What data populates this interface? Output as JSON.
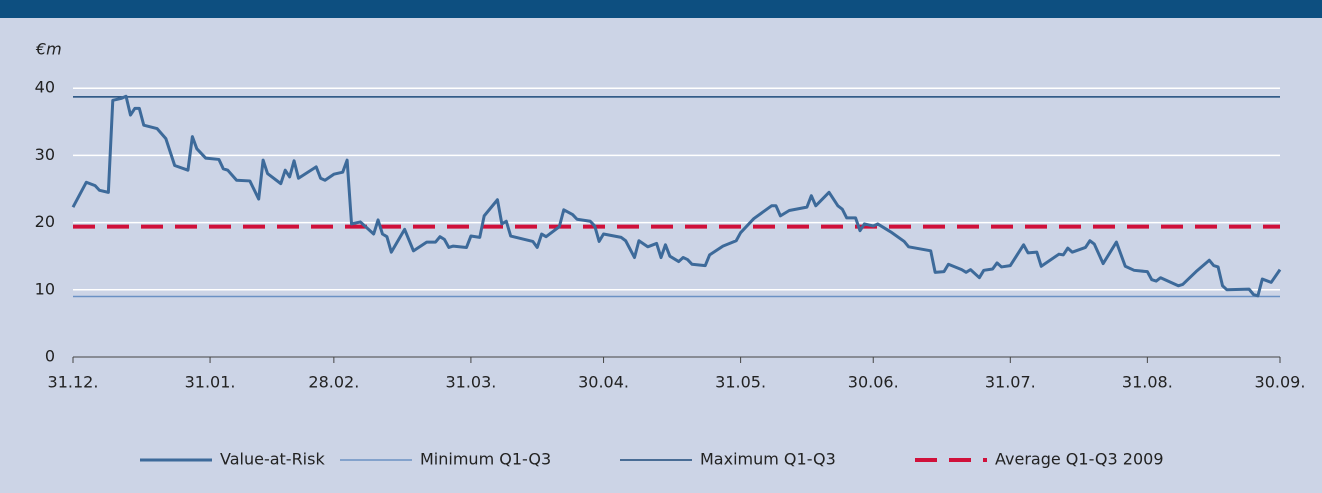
{
  "chart_data": {
    "type": "line",
    "y_label": "€m",
    "xlim": [
      0,
      273
    ],
    "xticks": [
      {
        "value": 0,
        "label": "31.12."
      },
      {
        "value": 31,
        "label": "31.01."
      },
      {
        "value": 59,
        "label": "28.02."
      },
      {
        "value": 90,
        "label": "31.03."
      },
      {
        "value": 120,
        "label": "30.04."
      },
      {
        "value": 151,
        "label": "31.05."
      },
      {
        "value": 181,
        "label": "30.06."
      },
      {
        "value": 212,
        "label": "31.07."
      },
      {
        "value": 243,
        "label": "31.08."
      },
      {
        "value": 273,
        "label": "30.09."
      }
    ],
    "ylim": [
      0,
      45
    ],
    "yticks": [
      0,
      10,
      20,
      30,
      40
    ],
    "grid": true,
    "series": [
      {
        "name": "Value-at-Risk",
        "color": "#3d6a9a",
        "x": [
          0,
          3,
          5,
          6,
          8,
          9,
          11,
          12,
          13,
          14,
          15,
          16,
          19,
          21,
          23,
          26,
          27,
          28,
          30,
          33,
          34,
          35,
          37,
          40,
          42,
          43,
          44,
          47,
          48,
          49,
          50,
          51,
          55,
          56,
          57,
          59,
          61,
          62,
          63,
          65,
          68,
          69,
          70,
          71,
          72,
          75,
          77,
          80,
          82,
          83,
          84,
          85,
          86,
          89,
          90,
          92,
          93,
          96,
          97,
          98,
          99,
          104,
          105,
          106,
          107,
          110,
          111,
          113,
          114,
          117,
          118,
          119,
          120,
          124,
          125,
          127,
          128,
          130,
          132,
          133,
          134,
          135,
          137,
          138,
          139,
          140,
          143,
          144,
          147,
          150,
          151,
          154,
          158,
          159,
          160,
          162,
          166,
          167,
          168,
          171,
          173,
          174,
          175,
          177,
          178,
          179,
          181,
          182,
          185,
          188,
          189,
          194,
          195,
          197,
          198,
          201,
          202,
          203,
          205,
          206,
          208,
          209,
          210,
          212,
          215,
          216,
          218,
          219,
          223,
          224,
          225,
          226,
          229,
          230,
          231,
          233,
          236,
          238,
          240,
          243,
          244,
          245,
          246,
          250,
          251,
          254,
          257,
          258,
          259,
          260,
          261,
          266,
          267,
          268,
          269,
          271,
          273
        ],
        "values": [
          22.3,
          26,
          25.5,
          24.8,
          24.5,
          38.2,
          38.5,
          38.8,
          36,
          37,
          37,
          34.5,
          34,
          32.5,
          28.5,
          27.8,
          32.8,
          31,
          29.6,
          29.4,
          28,
          27.8,
          26.3,
          26.2,
          23.5,
          29.3,
          27.3,
          25.8,
          27.8,
          26.8,
          29.2,
          26.6,
          28.3,
          26.6,
          26.3,
          27.2,
          27.5,
          29.3,
          19.8,
          20.1,
          18.3,
          20.4,
          18.3,
          17.9,
          15.6,
          19,
          15.8,
          17.1,
          17.1,
          17.9,
          17.5,
          16.3,
          16.5,
          16.3,
          18,
          17.8,
          21,
          23.4,
          19.8,
          20.2,
          18,
          17.2,
          16.3,
          18.3,
          17.9,
          19.4,
          21.9,
          21.2,
          20.5,
          20.2,
          19.5,
          17.2,
          18.3,
          17.8,
          17.3,
          14.8,
          17.3,
          16.4,
          16.9,
          14.8,
          16.7,
          15,
          14.2,
          14.8,
          14.5,
          13.8,
          13.6,
          15.2,
          16.5,
          17.3,
          18.5,
          20.6,
          22.5,
          22.5,
          21,
          21.8,
          22.3,
          24,
          22.5,
          24.5,
          22.5,
          22,
          20.7,
          20.7,
          18.8,
          19.8,
          19.5,
          19.8,
          18.6,
          17.2,
          16.4,
          15.8,
          12.6,
          12.7,
          13.8,
          13,
          12.6,
          13,
          11.8,
          12.9,
          13.1,
          14,
          13.4,
          13.6,
          16.7,
          15.5,
          15.6,
          13.5,
          15.3,
          15.2,
          16.2,
          15.6,
          16.3,
          17.3,
          16.8,
          13.9,
          17.1,
          13.5,
          12.9,
          12.7,
          11.5,
          11.3,
          11.8,
          10.6,
          10.8,
          12.7,
          14.4,
          13.6,
          13.4,
          10.6,
          10,
          10.1,
          9.3,
          9.1,
          11.6,
          11.1,
          13
        ]
      }
    ],
    "reference_lines": [
      {
        "name": "Minimum Q1-Q3",
        "color": "#6b91c4",
        "value": 9.0
      },
      {
        "name": "Maximum Q1-Q3",
        "color": "#1d4a7a",
        "value": 38.7
      },
      {
        "name": "Average Q1-Q3 2009",
        "color": "#d0103a",
        "value": 19.4,
        "dashed": true
      }
    ]
  }
}
